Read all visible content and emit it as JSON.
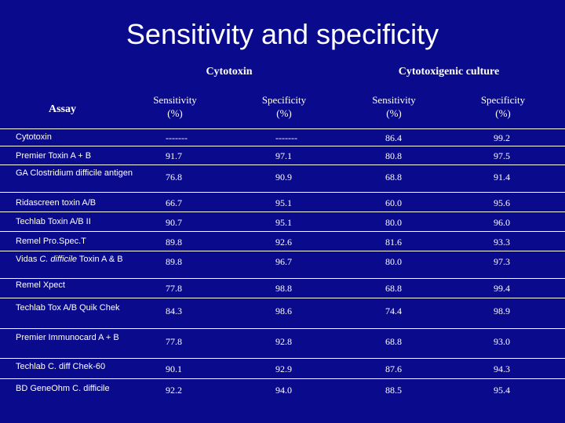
{
  "slide": {
    "title": "Sensitivity and specificity"
  },
  "header": {
    "assay": "Assay",
    "group_cytotoxin": "Cytotoxin",
    "group_culture": "Cytotoxigenic culture",
    "columns": [
      {
        "line1": "Sensitivity",
        "line2": "(%)"
      },
      {
        "line1": "Specificity",
        "line2": "(%)"
      },
      {
        "line1": "Sensitivity",
        "line2": "(%)"
      },
      {
        "line1": "Specificity",
        "line2": "(%)"
      }
    ]
  },
  "rows": [
    {
      "name": "Cytotoxin",
      "values": [
        "-------",
        "-------",
        "86.4",
        "99.2"
      ]
    },
    {
      "name": "Premier Toxin A + B",
      "values": [
        "91.7",
        "97.1",
        "80.8",
        "97.5"
      ]
    },
    {
      "name": "GA Clostridium difficile antigen",
      "values": [
        "76.8",
        "90.9",
        "68.8",
        "91.4"
      ]
    },
    {
      "name": "Ridascreen toxin A/B",
      "values": [
        "66.7",
        "95.1",
        "60.0",
        "95.6"
      ]
    },
    {
      "name": "Techlab Toxin A/B II",
      "values": [
        "90.7",
        "95.1",
        "80.0",
        "96.0"
      ]
    },
    {
      "name": "Remel Pro.Spec.T",
      "values": [
        "89.8",
        "92.6",
        "81.6",
        "93.3"
      ]
    },
    {
      "name_pre": "Vidas ",
      "name_italic": "C. difficile",
      "name_post": " Toxin A & B",
      "values": [
        "89.8",
        "96.7",
        "80.0",
        "97.3"
      ]
    },
    {
      "name": "Remel Xpect",
      "values": [
        "77.8",
        "98.8",
        "68.8",
        "99.4"
      ]
    },
    {
      "name": "Techlab Tox A/B Quik Chek",
      "values": [
        "84.3",
        "98.6",
        "74.4",
        "98.9"
      ]
    },
    {
      "name": "Premier Immunocard A + B",
      "values": [
        "77.8",
        "92.8",
        "68.8",
        "93.0"
      ]
    },
    {
      "name": "Techlab C. diff Chek-60",
      "values": [
        "90.1",
        "92.9",
        "87.6",
        "94.3"
      ]
    },
    {
      "name": "BD GeneOhm C. difficile",
      "values": [
        "92.2",
        "94.0",
        "88.5",
        "95.4"
      ]
    }
  ]
}
